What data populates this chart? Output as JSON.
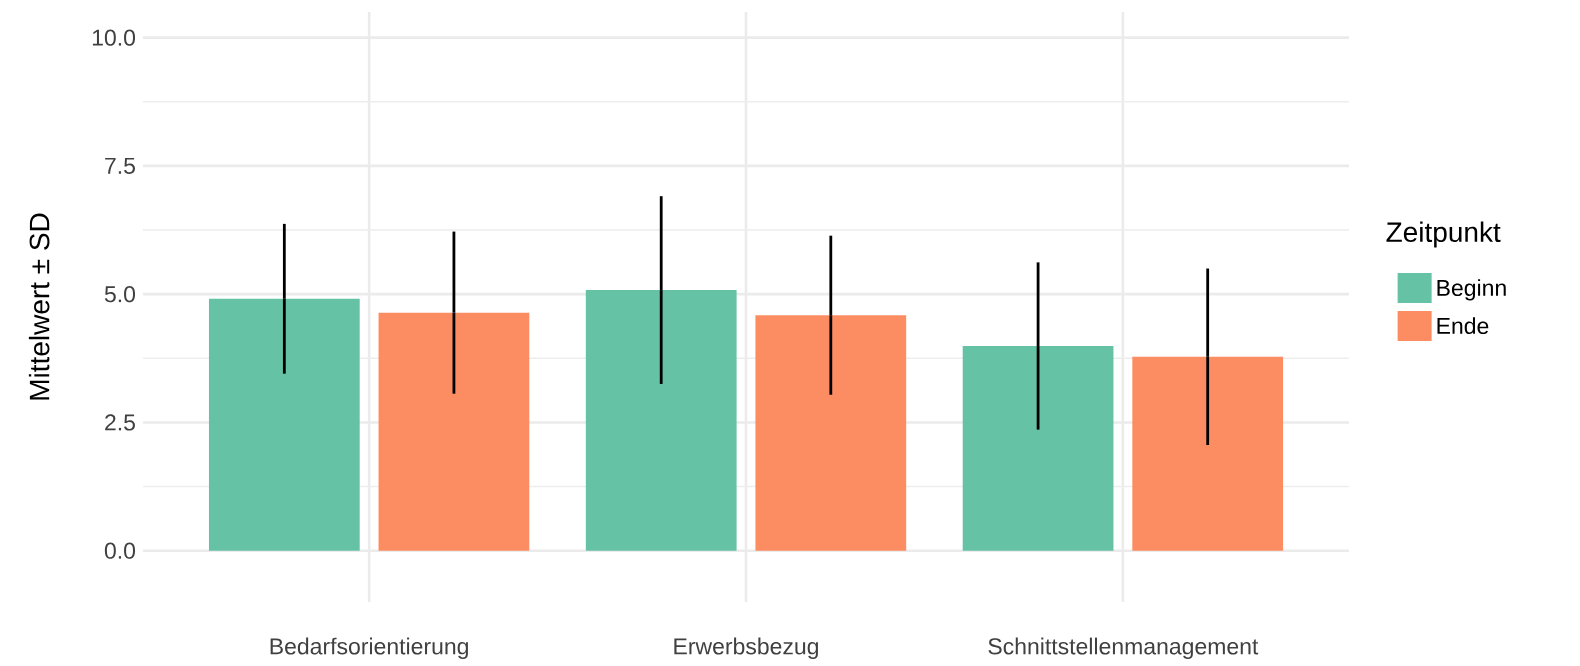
{
  "chart_data": {
    "type": "bar",
    "ylabel": "Mittelwert ± SD",
    "legend_title": "Zeitpunkt",
    "categories": [
      "Bedarfsorientierung",
      "Erwerbsbezug",
      "Schnittstellenmanagement"
    ],
    "series": [
      {
        "name": "Beginn",
        "color": "#66c2a5",
        "values": [
          4.91,
          5.08,
          3.99
        ],
        "errors": [
          1.46,
          1.83,
          1.63
        ]
      },
      {
        "name": "Ende",
        "color": "#fc8d62",
        "values": [
          4.64,
          4.59,
          3.78
        ],
        "errors": [
          1.58,
          1.55,
          1.72
        ]
      }
    ],
    "ylim": [
      -1,
      10.5
    ],
    "yticks": [
      {
        "value": 0,
        "label": "0.0"
      },
      {
        "value": 2.5,
        "label": "2.5"
      },
      {
        "value": 5,
        "label": "5.0"
      },
      {
        "value": 7.5,
        "label": "7.5"
      },
      {
        "value": 10,
        "label": "10.0"
      }
    ],
    "grid": true,
    "legend": "right"
  }
}
